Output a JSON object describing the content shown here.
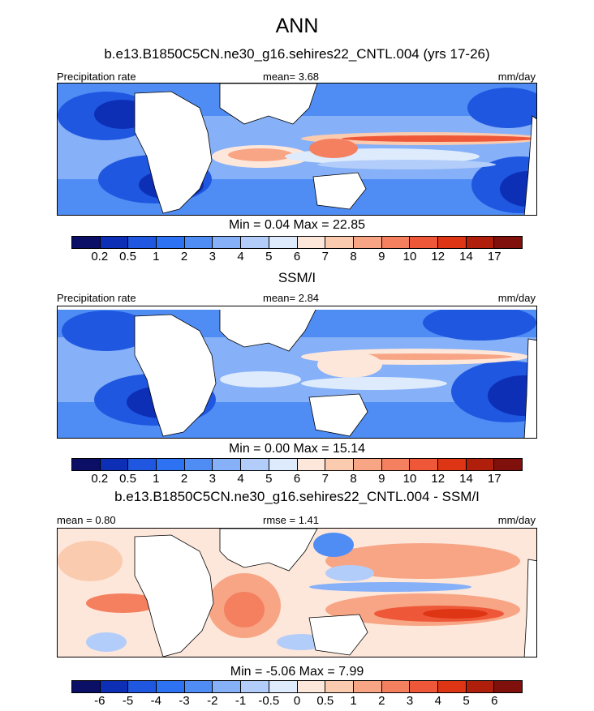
{
  "figure": {
    "title": "ANN"
  },
  "panels": [
    {
      "id": "model",
      "title": "b.e13.B1850C5CN.ne30_g16.sehires22_CNTL.004 (yrs 17-26)",
      "left_label": "Precipitation rate",
      "mid_label": "mean=   3.68",
      "units": "mm/day",
      "min_max": "Min =   0.04 Max =  22.85"
    },
    {
      "id": "obs",
      "title": "SSM/I",
      "left_label": "Precipitation rate",
      "mid_label": "mean=   2.84",
      "units": "mm/day",
      "min_max": "Min =   0.00 Max =  15.14"
    },
    {
      "id": "diff",
      "title": "b.e13.B1850C5CN.ne30_g16.sehires22_CNTL.004 - SSM/I",
      "left_label": "mean =   0.80",
      "mid_label": "rmse =   1.41",
      "units": "mm/day",
      "min_max": "Min =  -5.06 Max =   7.99"
    }
  ],
  "colorbars": {
    "abs": {
      "colors": [
        "#0b1066",
        "#0d2fb5",
        "#1f57e0",
        "#2d72f2",
        "#4f8df5",
        "#86b0f8",
        "#b3cdfa",
        "#deebfc",
        "#fde7da",
        "#fbcbb0",
        "#f7a585",
        "#f48060",
        "#ee5838",
        "#de3515",
        "#b01e0c",
        "#80100b"
      ],
      "ticks": [
        "0.2",
        "0.5",
        "1",
        "2",
        "3",
        "4",
        "5",
        "6",
        "7",
        "8",
        "9",
        "10",
        "12",
        "14",
        "17"
      ]
    },
    "diff": {
      "colors": [
        "#0b1066",
        "#0d2fb5",
        "#1f57e0",
        "#2d72f2",
        "#4f8df5",
        "#86b0f8",
        "#b3cdfa",
        "#deebfc",
        "#fde7da",
        "#fbcbb0",
        "#f7a585",
        "#f48060",
        "#ee5838",
        "#de3515",
        "#b01e0c",
        "#80100b"
      ],
      "ticks": [
        "-6",
        "-5",
        "-4",
        "-3",
        "-2",
        "-1",
        "-0.5",
        "0",
        "0.5",
        "1",
        "2",
        "3",
        "4",
        "5",
        "6"
      ]
    }
  },
  "chart_data": [
    {
      "type": "heatmap",
      "title": "b.e13.B1850C5CN.ne30_g16.sehires22_CNTL.004 (yrs 17-26)",
      "variable": "Precipitation rate",
      "units": "mm/day",
      "mean": 3.68,
      "min": 0.04,
      "max": 22.85,
      "levels": [
        0.2,
        0.5,
        1,
        2,
        3,
        4,
        5,
        6,
        7,
        8,
        9,
        10,
        12,
        14,
        17
      ]
    },
    {
      "type": "heatmap",
      "title": "SSM/I",
      "variable": "Precipitation rate",
      "units": "mm/day",
      "mean": 2.84,
      "min": 0.0,
      "max": 15.14,
      "levels": [
        0.2,
        0.5,
        1,
        2,
        3,
        4,
        5,
        6,
        7,
        8,
        9,
        10,
        12,
        14,
        17
      ]
    },
    {
      "type": "heatmap",
      "title": "b.e13.B1850C5CN.ne30_g16.sehires22_CNTL.004 - SSM/I",
      "units": "mm/day",
      "mean": 0.8,
      "rmse": 1.41,
      "min": -5.06,
      "max": 7.99,
      "levels": [
        -6,
        -5,
        -4,
        -3,
        -2,
        -1,
        -0.5,
        0,
        0.5,
        1,
        2,
        3,
        4,
        5,
        6
      ]
    }
  ]
}
